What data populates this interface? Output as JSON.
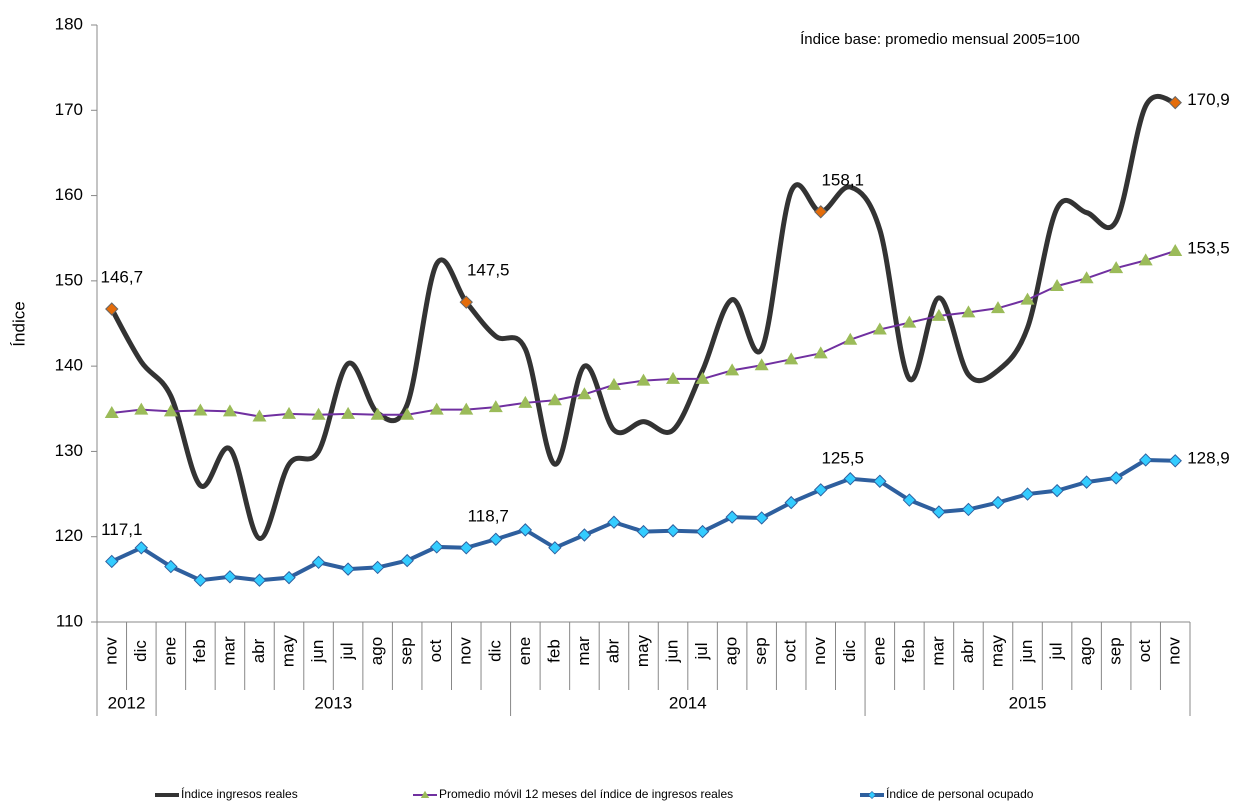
{
  "chart_data": {
    "type": "line",
    "annotation": "Índice base: promedio  mensual 2005=100",
    "y_label": "Índice",
    "categories": [
      "nov",
      "dic",
      "ene",
      "feb",
      "mar",
      "abr",
      "may",
      "jun",
      "jul",
      "ago",
      "sep",
      "oct",
      "nov",
      "dic",
      "ene",
      "feb",
      "mar",
      "abr",
      "may",
      "jun",
      "jul",
      "ago",
      "sep",
      "oct",
      "nov",
      "dic",
      "ene",
      "feb",
      "mar",
      "abr",
      "may",
      "jun",
      "jul",
      "ago",
      "sep",
      "oct",
      "nov"
    ],
    "years": [
      {
        "label": "2012",
        "count": 2
      },
      {
        "label": "2013",
        "count": 12
      },
      {
        "label": "2014",
        "count": 12
      },
      {
        "label": "2015",
        "count": 11
      }
    ],
    "ylim": [
      110,
      180
    ],
    "yticks": [
      110,
      120,
      130,
      140,
      150,
      160,
      170,
      180
    ],
    "series": [
      {
        "name": "Índice ingresos reales",
        "color": "#333333",
        "smooth": true,
        "highlight_color": "#e46c0a",
        "values": [
          146.7,
          140.5,
          136.5,
          126,
          130.3,
          119.8,
          128.5,
          130,
          140.3,
          134.5,
          135.5,
          152,
          147.5,
          143.5,
          142,
          128.5,
          140,
          132.5,
          133.5,
          132.5,
          139.5,
          147.8,
          142,
          160.5,
          158.1,
          161,
          156,
          138.5,
          148,
          139,
          139.5,
          144.5,
          158.5,
          158,
          157,
          170.5,
          170.9
        ],
        "value_labels": [
          "146,7",
          null,
          null,
          null,
          null,
          null,
          null,
          null,
          null,
          null,
          null,
          null,
          "147,5",
          null,
          null,
          null,
          null,
          null,
          null,
          null,
          null,
          null,
          null,
          null,
          "158,1",
          null,
          null,
          null,
          null,
          null,
          null,
          null,
          null,
          null,
          null,
          null,
          "170,9"
        ]
      },
      {
        "name": "Promedio móvil 12 meses del índice de ingresos reales",
        "color": "#7030a0",
        "marker": "triangle",
        "marker_color": "#9bbb59",
        "values": [
          134.5,
          134.9,
          134.7,
          134.8,
          134.7,
          134.1,
          134.4,
          134.3,
          134.4,
          134.3,
          134.3,
          134.9,
          134.9,
          135.2,
          135.7,
          136,
          136.7,
          137.8,
          138.3,
          138.5,
          138.5,
          139.5,
          140.1,
          140.8,
          141.5,
          143.1,
          144.3,
          145.1,
          145.9,
          146.3,
          146.8,
          147.8,
          149.4,
          150.3,
          151.5,
          152.4,
          153.5
        ],
        "value_labels": [
          null,
          null,
          null,
          null,
          null,
          null,
          null,
          null,
          null,
          null,
          null,
          null,
          null,
          null,
          null,
          null,
          null,
          null,
          null,
          null,
          null,
          null,
          null,
          null,
          null,
          null,
          null,
          null,
          null,
          null,
          null,
          null,
          null,
          null,
          null,
          null,
          "153,5"
        ]
      },
      {
        "name": "Índice de personal ocupado",
        "color": "#2e5f9e",
        "marker": "diamond",
        "marker_color": "#33ccff",
        "values": [
          117.1,
          118.7,
          116.5,
          114.9,
          115.3,
          114.9,
          115.2,
          117,
          116.2,
          116.4,
          117.2,
          118.8,
          118.7,
          119.7,
          120.8,
          118.7,
          120.2,
          121.7,
          120.6,
          120.7,
          120.6,
          122.3,
          122.2,
          124,
          125.5,
          126.8,
          126.5,
          124.3,
          122.9,
          123.2,
          124,
          125,
          125.4,
          126.4,
          126.9,
          129,
          128.9
        ],
        "value_labels": [
          "117,1",
          null,
          null,
          null,
          null,
          null,
          null,
          null,
          null,
          null,
          null,
          null,
          "118,7",
          null,
          null,
          null,
          null,
          null,
          null,
          null,
          null,
          null,
          null,
          null,
          "125,5",
          null,
          null,
          null,
          null,
          null,
          null,
          null,
          null,
          null,
          null,
          null,
          "128,9"
        ]
      }
    ]
  }
}
